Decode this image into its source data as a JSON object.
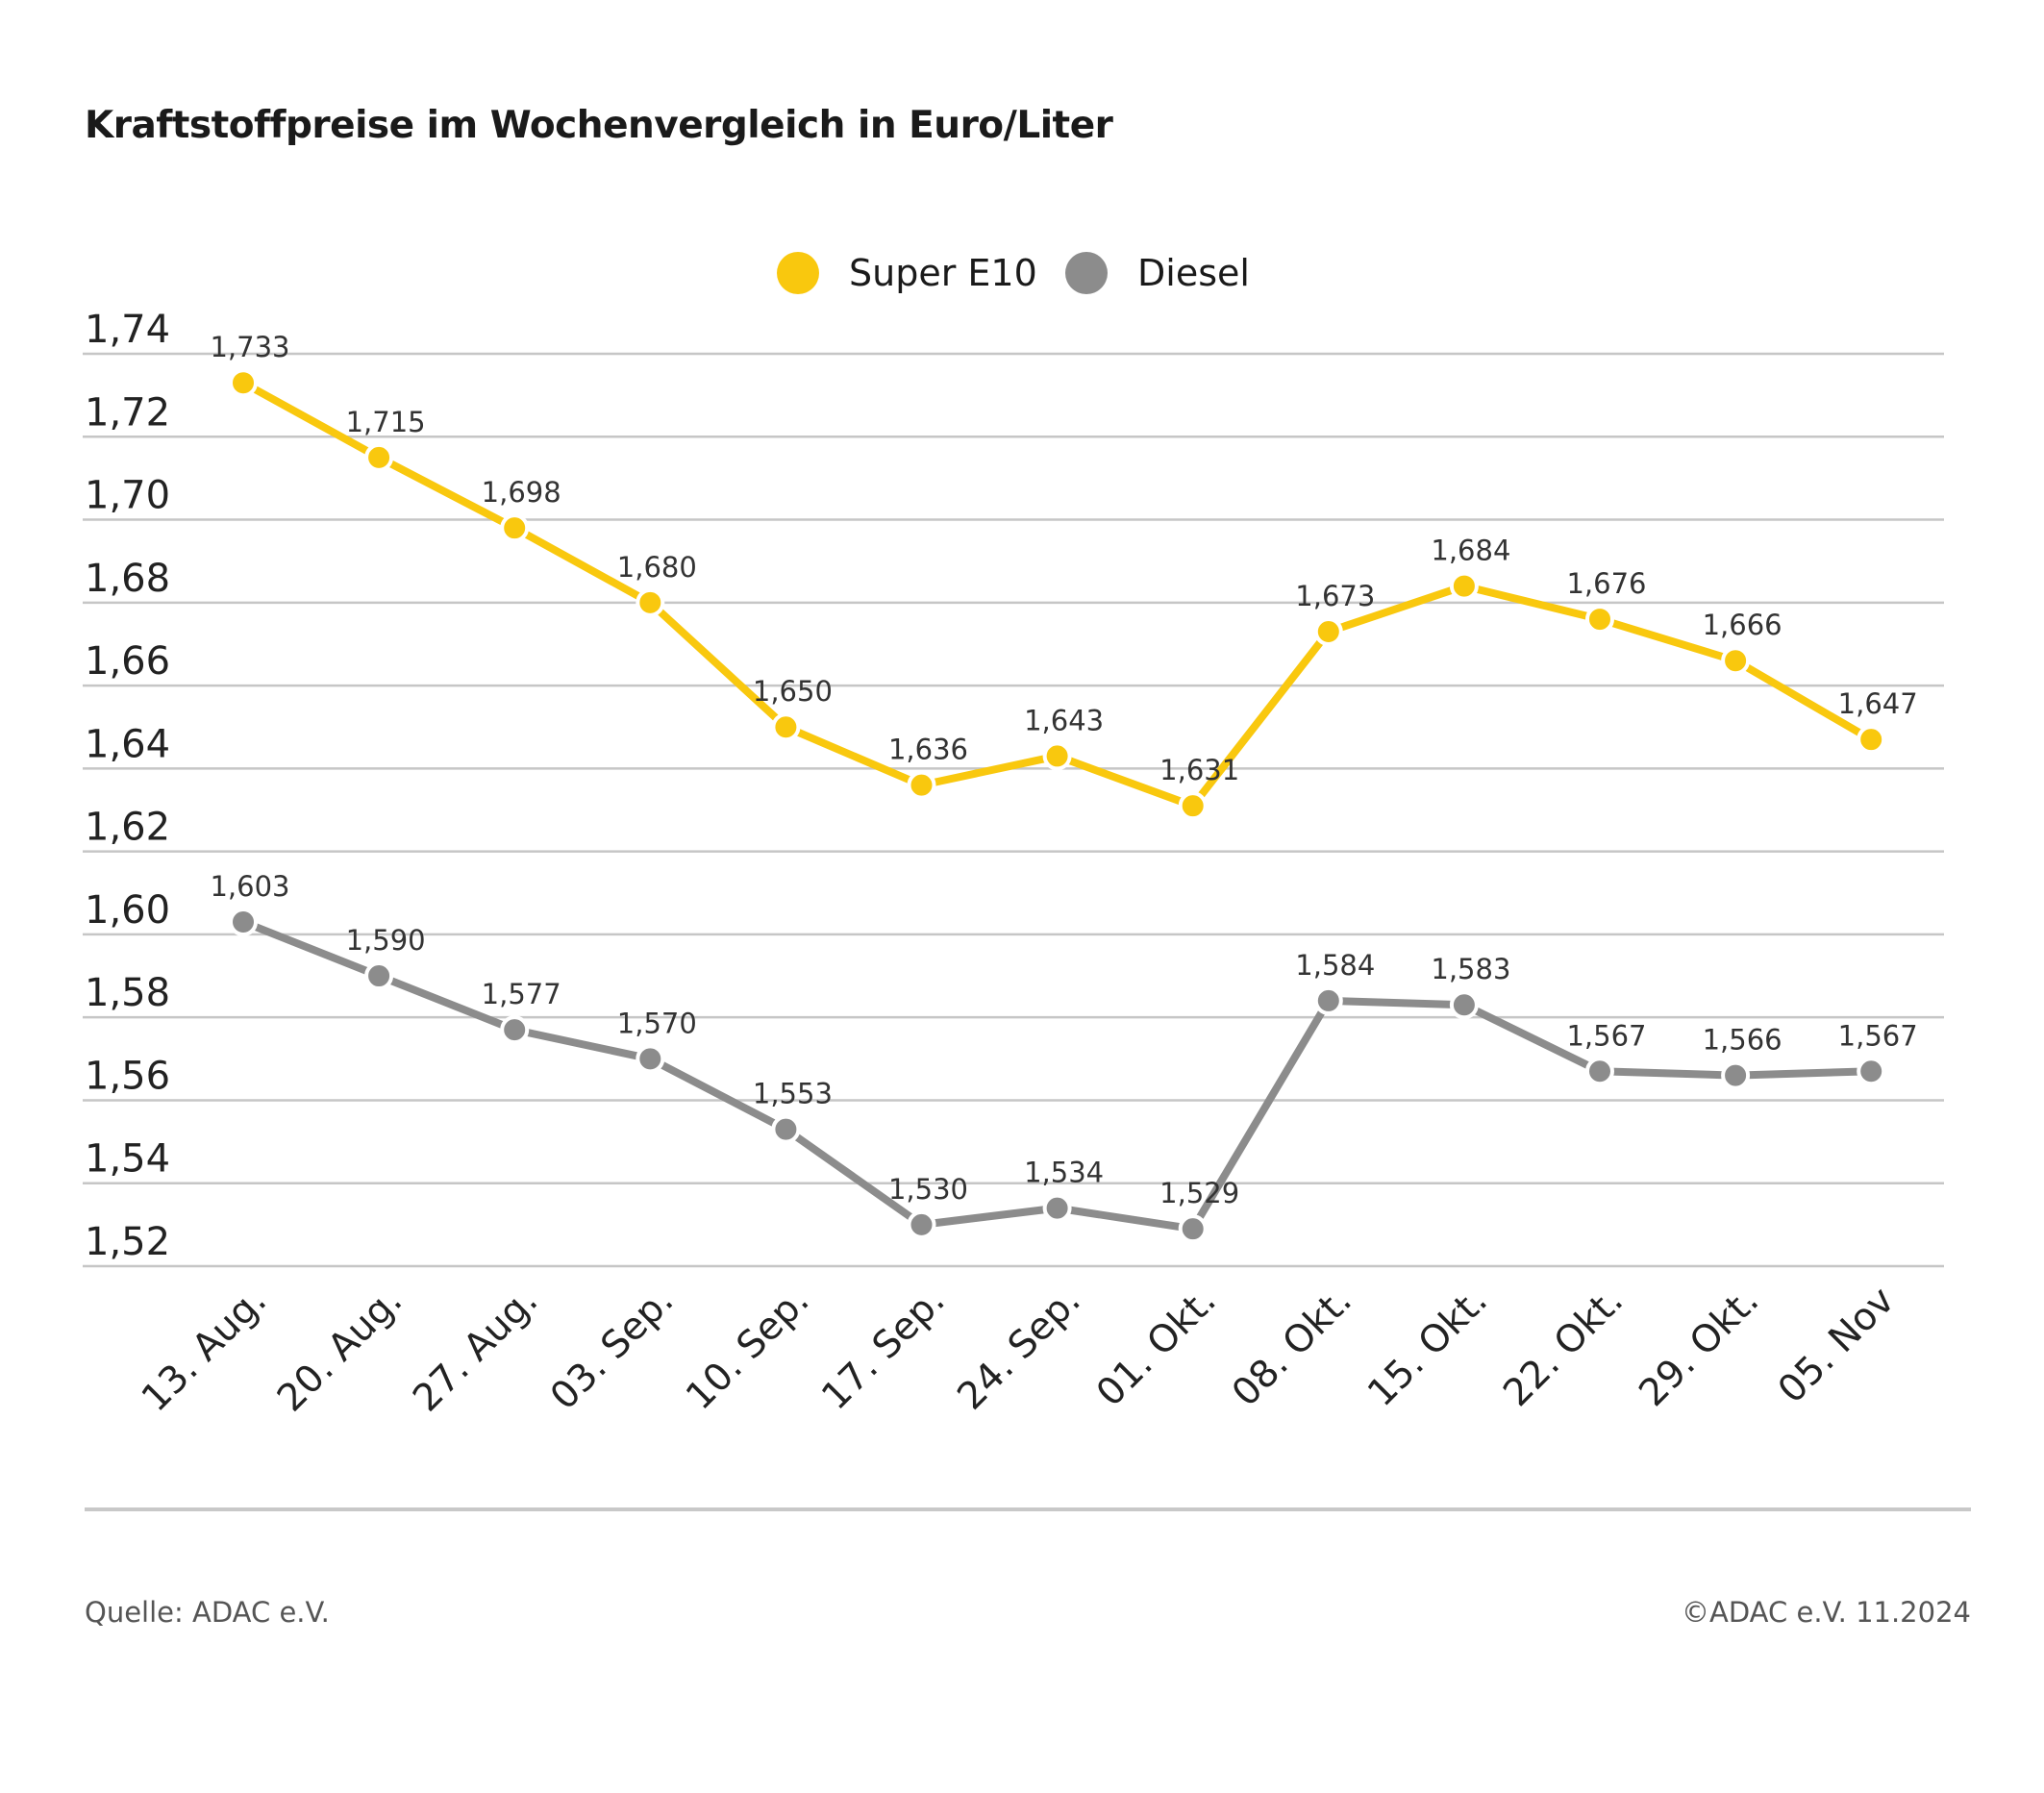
{
  "chart_data": {
    "type": "line",
    "title": "Kraftstoffpreise im Wochenvergleich in Euro/Liter",
    "categories": [
      "13. Aug.",
      "20. Aug.",
      "27. Aug.",
      "03. Sep.",
      "10. Sep.",
      "17. Sep.",
      "24. Sep.",
      "01. Okt.",
      "08. Okt.",
      "15. Okt.",
      "22. Okt.",
      "29. Okt.",
      "05. Nov"
    ],
    "series": [
      {
        "name": "Super E10",
        "color": "#f9c80e",
        "values": [
          1.733,
          1.715,
          1.698,
          1.68,
          1.65,
          1.636,
          1.643,
          1.631,
          1.673,
          1.684,
          1.676,
          1.666,
          1.647
        ],
        "labels": [
          "1,733",
          "1,715",
          "1,698",
          "1,680",
          "1,650",
          "1,636",
          "1,643",
          "1,631",
          "1,673",
          "1,684",
          "1,676",
          "1,666",
          "1,647"
        ]
      },
      {
        "name": "Diesel",
        "color": "#8c8c8c",
        "values": [
          1.603,
          1.59,
          1.577,
          1.57,
          1.553,
          1.53,
          1.534,
          1.529,
          1.584,
          1.583,
          1.567,
          1.566,
          1.567
        ],
        "labels": [
          "1,603",
          "1,590",
          "1,577",
          "1,570",
          "1,553",
          "1,530",
          "1,534",
          "1,529",
          "1,584",
          "1,583",
          "1,567",
          "1,566",
          "1,567"
        ]
      }
    ],
    "y_ticks": [
      1.74,
      1.72,
      1.7,
      1.68,
      1.66,
      1.64,
      1.62,
      1.6,
      1.58,
      1.56,
      1.54,
      1.52
    ],
    "y_tick_labels": [
      "1,74",
      "1,72",
      "1,70",
      "1,68",
      "1,66",
      "1,64",
      "1,62",
      "1,60",
      "1,58",
      "1,56",
      "1,54",
      "1,52"
    ],
    "ylim": [
      1.52,
      1.74
    ],
    "grid": true,
    "legend_position": "top-center",
    "xlabel": "",
    "ylabel": ""
  },
  "footer": {
    "source": "Quelle: ADAC e.V.",
    "copyright": "©ADAC e.V. 11.2024"
  }
}
